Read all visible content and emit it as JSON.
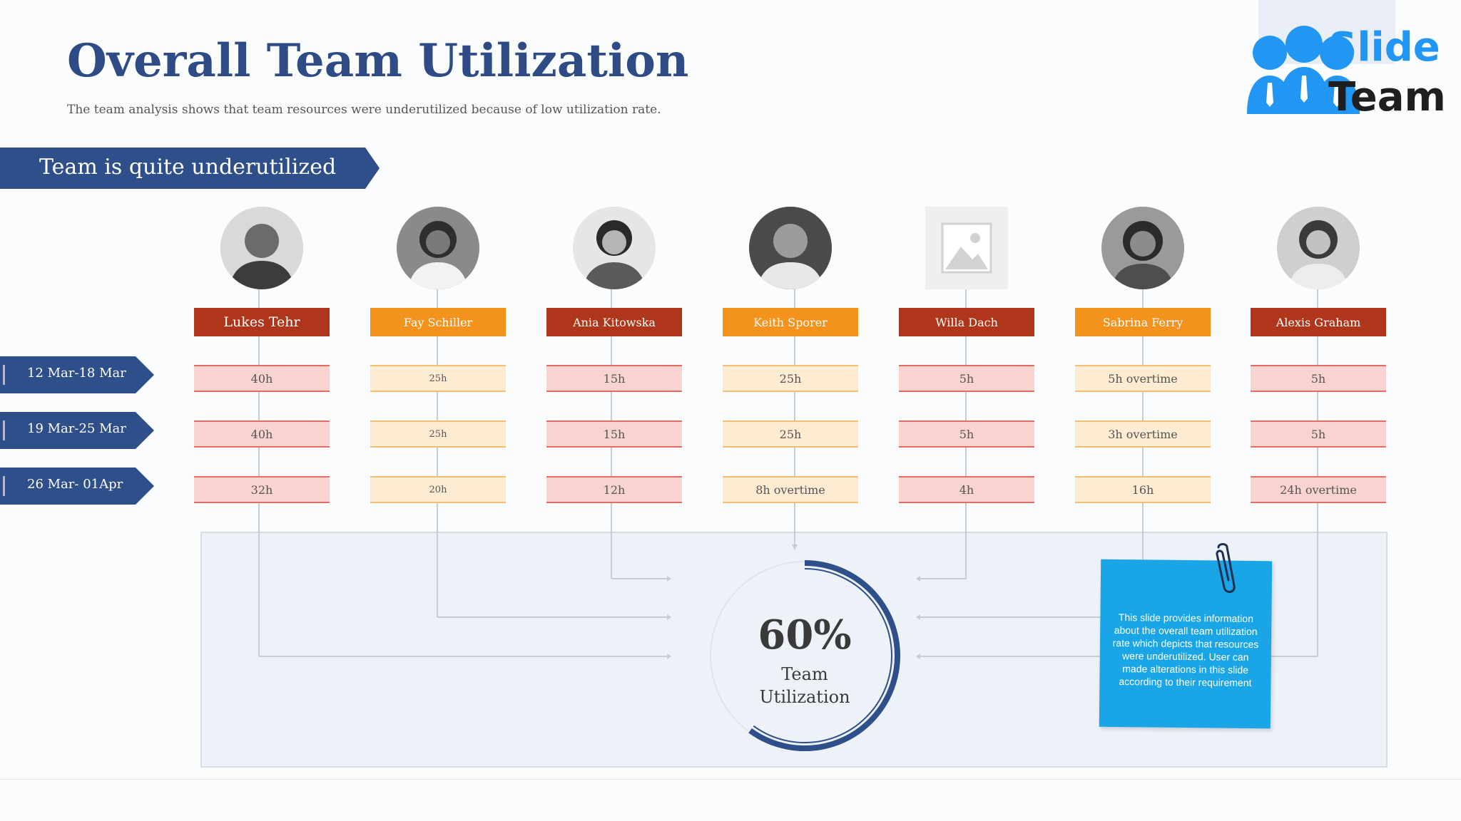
{
  "title": "Overall Team Utilization",
  "subtitle": "The team analysis shows that team resources were underutilized because of low utilization rate.",
  "logo": {
    "line1": "Slide",
    "line2": "Team"
  },
  "banner": "Team is quite underutilized",
  "periods": [
    "12 Mar-18 Mar",
    "19 Mar-25 Mar",
    "26 Mar- 01Apr"
  ],
  "members": [
    {
      "name": "Lukes Tehr",
      "hours": [
        "40h",
        "40h",
        "32h"
      ]
    },
    {
      "name": "Fay Schiller",
      "hours": [
        "25h",
        "25h",
        "20h"
      ]
    },
    {
      "name": "Ania Kitowska",
      "hours": [
        "15h",
        "15h",
        "12h"
      ]
    },
    {
      "name": "Keith Sporer",
      "hours": [
        "25h",
        "25h",
        "8h overtime"
      ]
    },
    {
      "name": "Willa Dach",
      "hours": [
        "5h",
        "5h",
        "4h"
      ]
    },
    {
      "name": "Sabrina Ferry",
      "hours": [
        "5h overtime",
        "3h overtime",
        "16h"
      ]
    },
    {
      "name": "Alexis Graham",
      "hours": [
        "5h",
        "5h",
        "24h overtime"
      ]
    }
  ],
  "utilization": {
    "value": "60%",
    "fraction": 0.6,
    "label_line1": "Team",
    "label_line2": "Utilization"
  },
  "note": "This slide provides information about the overall team utilization rate which depicts that resources were underutilized. User can made alterations in this slide according to their requirement",
  "colors": {
    "title": "#2f4b86",
    "banner": "#2e4f8a",
    "name_red": "#b0361b",
    "name_orange": "#f4921e",
    "cell_red": "#f9d3cf",
    "cell_orange": "#fdebd2",
    "gauge": "#2e4f8a",
    "note": "#1aa6e6"
  }
}
